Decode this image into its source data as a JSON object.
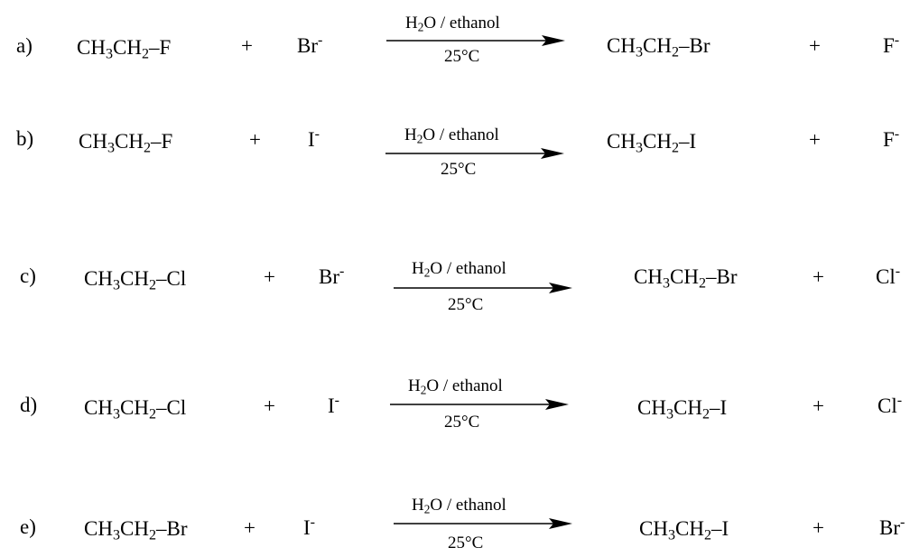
{
  "reactions": [
    {
      "label": "a)",
      "reactant": {
        "a": "CH",
        "b": "3",
        "c": "CH",
        "d": "2",
        "e": "–F"
      },
      "plus1": "+",
      "ion1": {
        "sym": "Br",
        "charge": "-"
      },
      "cond_top": {
        "a": "H",
        "b": "2",
        "c": "O / ethanol"
      },
      "cond_bottom": "25°C",
      "product": {
        "a": "CH",
        "b": "3",
        "c": "CH",
        "d": "2",
        "e": "–Br"
      },
      "plus2": "+",
      "ion2": {
        "sym": "F",
        "charge": "-"
      }
    },
    {
      "label": "b)",
      "reactant": {
        "a": "CH",
        "b": "3",
        "c": "CH",
        "d": "2",
        "e": "–F"
      },
      "plus1": "+",
      "ion1": {
        "sym": "I",
        "charge": "-"
      },
      "cond_top": {
        "a": "H",
        "b": "2",
        "c": "O / ethanol"
      },
      "cond_bottom": "25°C",
      "product": {
        "a": "CH",
        "b": "3",
        "c": "CH",
        "d": "2",
        "e": "–I"
      },
      "plus2": "+",
      "ion2": {
        "sym": "F",
        "charge": "-"
      }
    },
    {
      "label": "c)",
      "reactant": {
        "a": "CH",
        "b": "3",
        "c": "CH",
        "d": "2",
        "e": "–Cl"
      },
      "plus1": "+",
      "ion1": {
        "sym": "Br",
        "charge": "-"
      },
      "cond_top": {
        "a": "H",
        "b": "2",
        "c": "O / ethanol"
      },
      "cond_bottom": "25°C",
      "product": {
        "a": "CH",
        "b": "3",
        "c": "CH",
        "d": "2",
        "e": "–Br"
      },
      "plus2": "+",
      "ion2": {
        "sym": "Cl",
        "charge": "-"
      }
    },
    {
      "label": "d)",
      "reactant": {
        "a": "CH",
        "b": "3",
        "c": "CH",
        "d": "2",
        "e": "–Cl"
      },
      "plus1": "+",
      "ion1": {
        "sym": "I",
        "charge": "-"
      },
      "cond_top": {
        "a": "H",
        "b": "2",
        "c": "O / ethanol"
      },
      "cond_bottom": "25°C",
      "product": {
        "a": "CH",
        "b": "3",
        "c": "CH",
        "d": "2",
        "e": "–I"
      },
      "plus2": "+",
      "ion2": {
        "sym": "Cl",
        "charge": "-"
      }
    },
    {
      "label": "e)",
      "reactant": {
        "a": "CH",
        "b": "3",
        "c": "CH",
        "d": "2",
        "e": "–Br"
      },
      "plus1": "+",
      "ion1": {
        "sym": "I",
        "charge": "-"
      },
      "cond_top": {
        "a": "H",
        "b": "2",
        "c": "O / ethanol"
      },
      "cond_bottom": "25°C",
      "product": {
        "a": "CH",
        "b": "3",
        "c": "CH",
        "d": "2",
        "e": "–I"
      },
      "plus2": "+",
      "ion2": {
        "sym": "Br",
        "charge": "-"
      }
    }
  ]
}
